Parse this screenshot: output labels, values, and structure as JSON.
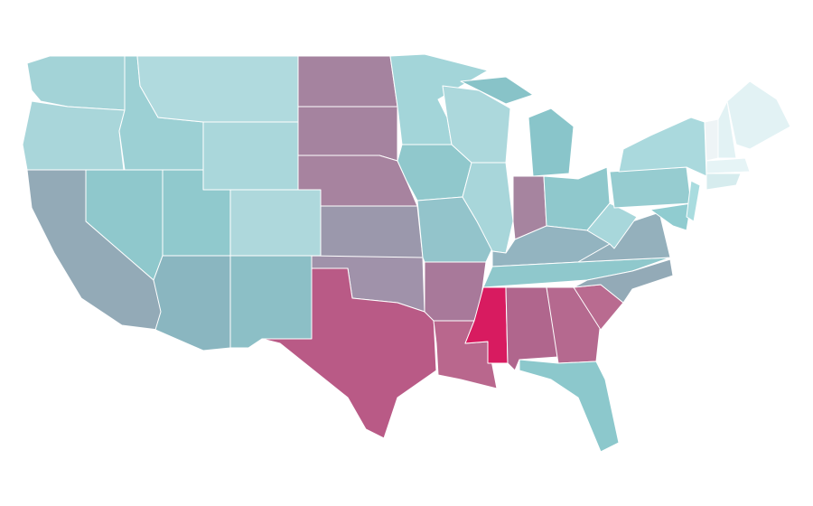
{
  "map": {
    "fills": [
      "#a3d3d7",
      "#a9d6da",
      "#9cd0d4",
      "#b0dade",
      "#aad7db",
      "#8fc8cc",
      "#93aab7",
      "#90c9cd",
      "#aed8dc",
      "#8ab6c0",
      "#8cbfc6",
      "#a5839f",
      "#a5839f",
      "#a7839f",
      "#9b98ac",
      "#a092aa",
      "#b95a86",
      "#a3d5d9",
      "#90c8cc",
      "#93c4cb",
      "#a8799a",
      "#b9678d",
      "#acd8dc",
      "#a8d6da",
      "#89c5ca",
      "#88c3c8",
      "#a6849f",
      "#8fc8cc",
      "#93b4c0",
      "#8fc8cc",
      "#d81b60",
      "#b0668d",
      "#b5698f",
      "#b96b90",
      "#8cc8cc",
      "#93aab7",
      "#94b0bc",
      "#a8d7db",
      "#96ccd0",
      "#aad9dd",
      "#90ccd0",
      "#a9dcdf",
      "#eef4f6",
      "#e2f2f4",
      "#e2f2f4",
      "#e6f4f6",
      "#d6ecee"
    ]
  }
}
